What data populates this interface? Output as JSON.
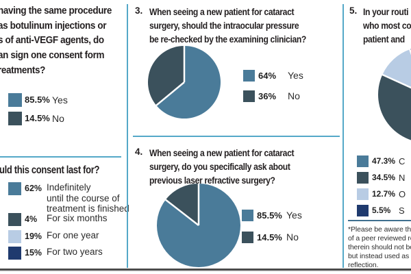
{
  "colors": {
    "steel_blue": "#4A7B99",
    "dark_slate": "#3B515C",
    "light_blue": "#B8CCE4",
    "navy": "#1F3A6E",
    "divider_blue": "#54A8C8",
    "footnote_rule": "#3F6F8F",
    "bottom_border": "#4C4C4C",
    "question_text": "#231F20"
  },
  "panels": {
    "q1": {
      "question_lines": [
        "having the same procedure",
        "as botulinum injections or",
        "s of anti-VEGF agents, do",
        "an sign one consent form",
        "reatments?"
      ],
      "legend": [
        {
          "pct": "85.5%",
          "label": "Yes",
          "color": "#4A7B99"
        },
        {
          "pct": "14.5%",
          "label": "No",
          "color": "#3B515C"
        }
      ]
    },
    "q2": {
      "question": "uld this consent last for?",
      "legend": [
        {
          "pct": "62%",
          "label": "Indefinitely until the course of treatment is finished",
          "label_lines": [
            "Indefinitely",
            "until the course of",
            "treatment is finished"
          ],
          "color": "#4A7B99"
        },
        {
          "pct": "4%",
          "label": "For six months",
          "color": "#3B515C"
        },
        {
          "pct": "19%",
          "label": "For one year",
          "color": "#B8CCE4"
        },
        {
          "pct": "15%",
          "label": "For two years",
          "color": "#1F3A6E"
        }
      ]
    },
    "q3": {
      "number": "3.",
      "question_lines": [
        "When seeing a new patient for cataract",
        "surgery, should the intraocular pressure",
        "be re-checked by the examining clinician?"
      ],
      "legend": [
        {
          "pct": "64%",
          "label": "Yes",
          "color": "#4A7B99"
        },
        {
          "pct": "36%",
          "label": "No",
          "color": "#3B515C"
        }
      ]
    },
    "q4": {
      "number": "4.",
      "question_lines": [
        "When seeing a new patient for cataract",
        "surgery, do you specifically ask about",
        "previous laser refractive surgery?"
      ],
      "legend": [
        {
          "pct": "85.5%",
          "label": "Yes",
          "color": "#4A7B99"
        },
        {
          "pct": "14.5%",
          "label": "No",
          "color": "#3B515C"
        }
      ]
    },
    "q5": {
      "number": "5.",
      "question_lines": [
        "In your routi",
        "who most co",
        "patient and"
      ],
      "legend": [
        {
          "pct": "47.3%",
          "label": "C",
          "color": "#4A7B99"
        },
        {
          "pct": "34.5%",
          "label": "N",
          "color": "#3B515C"
        },
        {
          "pct": "12.7%",
          "label": "O",
          "color": "#B8CCE4"
        },
        {
          "pct": "5.5%",
          "label": "S",
          "color": "#1F3A6E"
        }
      ],
      "footnote_lines": [
        "*Please be aware that",
        "of a peer reviewed res",
        "therein should not be",
        "but instead used as a",
        "reflection."
      ]
    }
  },
  "chart_data": [
    {
      "id": "q1",
      "type": "pie",
      "render": "legend-only",
      "labels": [
        "Yes",
        "No"
      ],
      "values": [
        85.5,
        14.5
      ],
      "colors": [
        "#4A7B99",
        "#3B515C"
      ],
      "start_angle_deg": 0,
      "direction": "clockwise",
      "legend_position": "left"
    },
    {
      "id": "q2",
      "type": "pie",
      "render": "legend-only",
      "labels": [
        "Indefinitely until the course of treatment is finished",
        "For six months",
        "For one year",
        "For two years"
      ],
      "values": [
        62,
        4,
        19,
        15
      ],
      "colors": [
        "#4A7B99",
        "#3B515C",
        "#B8CCE4",
        "#1F3A6E"
      ],
      "start_angle_deg": 0,
      "direction": "clockwise",
      "legend_position": "left"
    },
    {
      "id": "q3",
      "type": "pie",
      "labels": [
        "Yes",
        "No"
      ],
      "values": [
        64,
        36
      ],
      "colors": [
        "#4A7B99",
        "#3B515C"
      ],
      "start_angle_deg": 0,
      "direction": "clockwise",
      "legend_position": "right"
    },
    {
      "id": "q4",
      "type": "pie",
      "labels": [
        "Yes",
        "No"
      ],
      "values": [
        85.5,
        14.5
      ],
      "colors": [
        "#4A7B99",
        "#3B515C"
      ],
      "start_angle_deg": 0,
      "direction": "clockwise",
      "legend_position": "right"
    },
    {
      "id": "q5",
      "type": "pie",
      "labels": [
        "C",
        "N",
        "O",
        "S"
      ],
      "values": [
        47.3,
        34.5,
        12.7,
        5.5
      ],
      "colors": [
        "#4A7B99",
        "#3B515C",
        "#B8CCE4",
        "#1F3A6E"
      ],
      "start_angle_deg": 0,
      "direction": "clockwise",
      "legend_position": "below"
    }
  ]
}
